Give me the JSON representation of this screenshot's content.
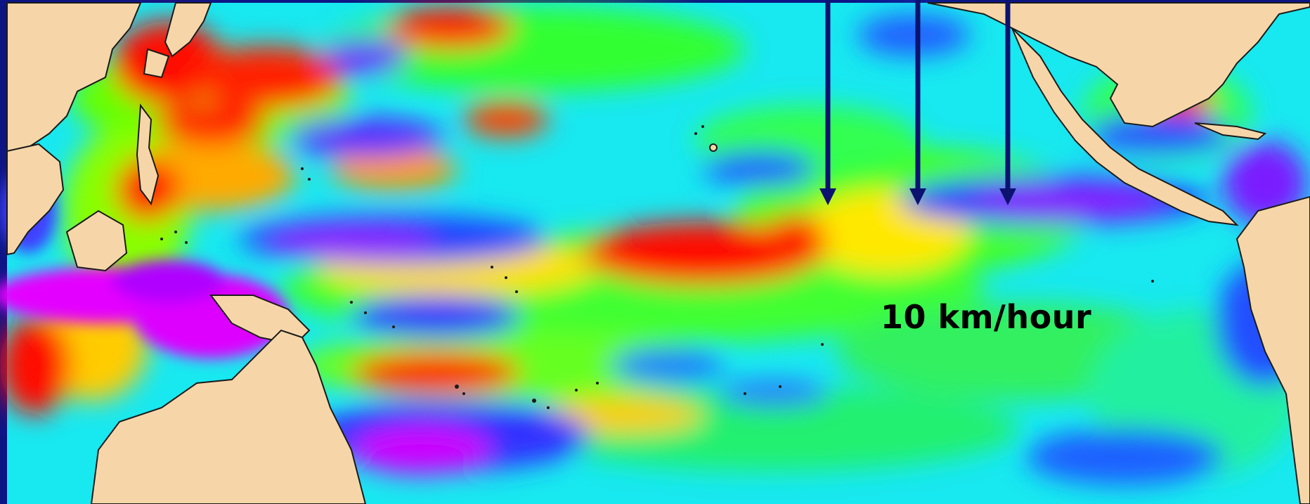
{
  "map": {
    "speed_annotation": "10 km/hour",
    "arrow_count": 3,
    "colors": {
      "background": "#0d1585",
      "land": "#f6d6a8",
      "coastline": "#1a1a1a",
      "arrow": "#0b1270",
      "annotation_text": "#000000"
    },
    "color_scale": [
      "#ff00ff",
      "#6a1fff",
      "#1e4bff",
      "#00e6ff",
      "#00f080",
      "#33ff00",
      "#ffff00",
      "#ff9900",
      "#ff0000"
    ]
  }
}
